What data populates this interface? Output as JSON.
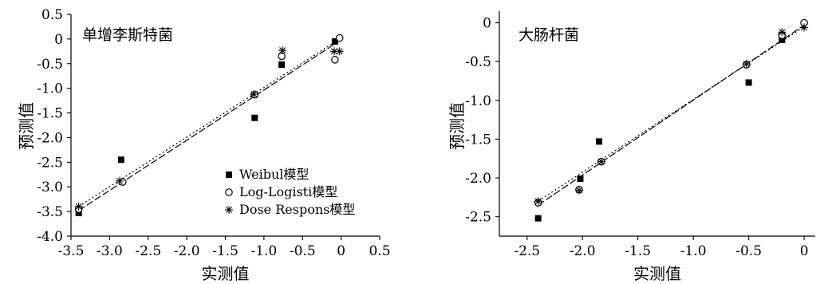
{
  "chart_data": [
    {
      "type": "scatter",
      "title": "单增李斯特菌",
      "xlabel": "实测值",
      "ylabel": "预测值",
      "xlim": [
        -3.5,
        0.5
      ],
      "ylim": [
        -4.0,
        0.5
      ],
      "xticks": [
        -3.5,
        -3.0,
        -2.5,
        -2.0,
        -1.5,
        -1.0,
        -0.5,
        0,
        0.5
      ],
      "yticks": [
        0.5,
        0,
        -0.5,
        -1.0,
        -1.5,
        -2.0,
        -2.5,
        -3.0,
        -3.5,
        -4.0
      ],
      "xtick_labels": [
        "-3.5",
        "-3.0",
        "-2.5",
        "-2.0",
        "-1.5",
        "-1.0",
        "-0.5",
        "0",
        "0.5"
      ],
      "ytick_labels": [
        "0.5",
        "0",
        "-0.5",
        "-1.0",
        "-1.5",
        "-2.0",
        "-2.5",
        "-3.0",
        "-3.5",
        "-4.0"
      ],
      "legend_position": "bottom-right",
      "series": [
        {
          "name": "Weibul模型",
          "marker": "square",
          "x": [
            -3.4,
            -2.85,
            -1.12,
            -0.77,
            -0.08
          ],
          "y": [
            -3.53,
            -2.45,
            -1.6,
            -0.52,
            -0.05
          ]
        },
        {
          "name": "Log-Logisti模型",
          "marker": "circle",
          "x": [
            -3.4,
            -2.83,
            -1.12,
            -0.77,
            -0.08,
            -0.02
          ],
          "y": [
            -3.45,
            -2.9,
            -1.13,
            -0.35,
            -0.42,
            0.02
          ]
        },
        {
          "name": "Dose Respons模型",
          "marker": "asterisk",
          "x": [
            -3.4,
            -2.87,
            -1.13,
            -0.76,
            -0.09,
            -0.02
          ],
          "y": [
            -3.4,
            -2.88,
            -1.12,
            -0.23,
            -0.25,
            -0.25
          ]
        }
      ],
      "fit_lines": [
        {
          "x": [
            -3.4,
            -0.1
          ],
          "y": [
            -3.48,
            -0.12
          ],
          "dash": "long"
        },
        {
          "x": [
            -3.4,
            -0.1
          ],
          "y": [
            -3.4,
            -0.08
          ],
          "dash": "dot"
        }
      ]
    },
    {
      "type": "scatter",
      "title": "大肠杆菌",
      "xlabel": "实测值",
      "ylabel": "预测值",
      "xlim": [
        -2.75,
        0.1
      ],
      "ylim": [
        -2.75,
        0.15
      ],
      "xticks": [
        -2.5,
        -2.0,
        -1.5,
        -1.0,
        -0.5,
        0
      ],
      "yticks": [
        0,
        -0.5,
        -1.0,
        -1.5,
        -2.0,
        -2.5
      ],
      "xtick_labels": [
        "-2.5",
        "-2.0",
        "-1.5",
        "-1.0",
        "-0.5",
        "0"
      ],
      "ytick_labels": [
        "0",
        "-0.5",
        "-1.0",
        "-1.5",
        "-2.0",
        "-2.5"
      ],
      "series": [
        {
          "name": "Weibul模型",
          "marker": "square",
          "x": [
            -2.4,
            -2.02,
            -1.85,
            -0.5,
            -0.2
          ],
          "y": [
            -2.52,
            -2.01,
            -1.53,
            -0.77,
            -0.22
          ]
        },
        {
          "name": "Log-Logisti模型",
          "marker": "circle",
          "x": [
            -2.4,
            -2.03,
            -1.83,
            -0.52,
            -0.2,
            0.0
          ],
          "y": [
            -2.32,
            -2.15,
            -1.79,
            -0.54,
            -0.16,
            0.0
          ]
        },
        {
          "name": "Dose Respons模型",
          "marker": "asterisk",
          "x": [
            -2.4,
            -2.03,
            -1.83,
            -0.52,
            -0.2,
            0.0
          ],
          "y": [
            -2.3,
            -2.16,
            -1.79,
            -0.53,
            -0.12,
            -0.06
          ]
        }
      ],
      "fit_lines": [
        {
          "x": [
            -2.4,
            0.0
          ],
          "y": [
            -2.35,
            -0.03
          ],
          "dash": "long"
        },
        {
          "x": [
            -2.4,
            0.0
          ],
          "y": [
            -2.3,
            -0.05
          ],
          "dash": "dot"
        }
      ]
    }
  ]
}
